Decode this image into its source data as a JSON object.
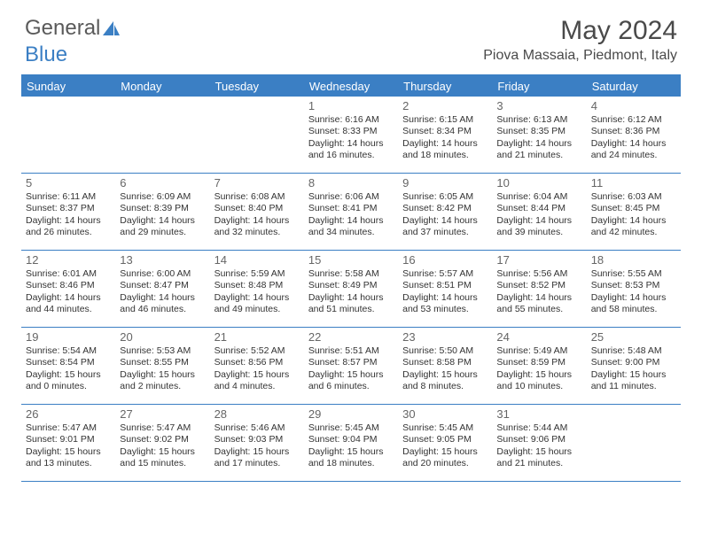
{
  "logo": {
    "text1": "General",
    "text2": "Blue"
  },
  "title": "May 2024",
  "location": "Piova Massaia, Piedmont, Italy",
  "colors": {
    "accent": "#3b7fc4",
    "text": "#333333",
    "muted": "#666666",
    "bg": "#ffffff"
  },
  "dayNames": [
    "Sunday",
    "Monday",
    "Tuesday",
    "Wednesday",
    "Thursday",
    "Friday",
    "Saturday"
  ],
  "weeks": [
    [
      null,
      null,
      null,
      {
        "n": "1",
        "sr": "6:16 AM",
        "ss": "8:33 PM",
        "dh": "14",
        "dm": "16"
      },
      {
        "n": "2",
        "sr": "6:15 AM",
        "ss": "8:34 PM",
        "dh": "14",
        "dm": "18"
      },
      {
        "n": "3",
        "sr": "6:13 AM",
        "ss": "8:35 PM",
        "dh": "14",
        "dm": "21"
      },
      {
        "n": "4",
        "sr": "6:12 AM",
        "ss": "8:36 PM",
        "dh": "14",
        "dm": "24"
      }
    ],
    [
      {
        "n": "5",
        "sr": "6:11 AM",
        "ss": "8:37 PM",
        "dh": "14",
        "dm": "26"
      },
      {
        "n": "6",
        "sr": "6:09 AM",
        "ss": "8:39 PM",
        "dh": "14",
        "dm": "29"
      },
      {
        "n": "7",
        "sr": "6:08 AM",
        "ss": "8:40 PM",
        "dh": "14",
        "dm": "32"
      },
      {
        "n": "8",
        "sr": "6:06 AM",
        "ss": "8:41 PM",
        "dh": "14",
        "dm": "34"
      },
      {
        "n": "9",
        "sr": "6:05 AM",
        "ss": "8:42 PM",
        "dh": "14",
        "dm": "37"
      },
      {
        "n": "10",
        "sr": "6:04 AM",
        "ss": "8:44 PM",
        "dh": "14",
        "dm": "39"
      },
      {
        "n": "11",
        "sr": "6:03 AM",
        "ss": "8:45 PM",
        "dh": "14",
        "dm": "42"
      }
    ],
    [
      {
        "n": "12",
        "sr": "6:01 AM",
        "ss": "8:46 PM",
        "dh": "14",
        "dm": "44"
      },
      {
        "n": "13",
        "sr": "6:00 AM",
        "ss": "8:47 PM",
        "dh": "14",
        "dm": "46"
      },
      {
        "n": "14",
        "sr": "5:59 AM",
        "ss": "8:48 PM",
        "dh": "14",
        "dm": "49"
      },
      {
        "n": "15",
        "sr": "5:58 AM",
        "ss": "8:49 PM",
        "dh": "14",
        "dm": "51"
      },
      {
        "n": "16",
        "sr": "5:57 AM",
        "ss": "8:51 PM",
        "dh": "14",
        "dm": "53"
      },
      {
        "n": "17",
        "sr": "5:56 AM",
        "ss": "8:52 PM",
        "dh": "14",
        "dm": "55"
      },
      {
        "n": "18",
        "sr": "5:55 AM",
        "ss": "8:53 PM",
        "dh": "14",
        "dm": "58"
      }
    ],
    [
      {
        "n": "19",
        "sr": "5:54 AM",
        "ss": "8:54 PM",
        "dh": "15",
        "dm": "0"
      },
      {
        "n": "20",
        "sr": "5:53 AM",
        "ss": "8:55 PM",
        "dh": "15",
        "dm": "2"
      },
      {
        "n": "21",
        "sr": "5:52 AM",
        "ss": "8:56 PM",
        "dh": "15",
        "dm": "4"
      },
      {
        "n": "22",
        "sr": "5:51 AM",
        "ss": "8:57 PM",
        "dh": "15",
        "dm": "6"
      },
      {
        "n": "23",
        "sr": "5:50 AM",
        "ss": "8:58 PM",
        "dh": "15",
        "dm": "8"
      },
      {
        "n": "24",
        "sr": "5:49 AM",
        "ss": "8:59 PM",
        "dh": "15",
        "dm": "10"
      },
      {
        "n": "25",
        "sr": "5:48 AM",
        "ss": "9:00 PM",
        "dh": "15",
        "dm": "11"
      }
    ],
    [
      {
        "n": "26",
        "sr": "5:47 AM",
        "ss": "9:01 PM",
        "dh": "15",
        "dm": "13"
      },
      {
        "n": "27",
        "sr": "5:47 AM",
        "ss": "9:02 PM",
        "dh": "15",
        "dm": "15"
      },
      {
        "n": "28",
        "sr": "5:46 AM",
        "ss": "9:03 PM",
        "dh": "15",
        "dm": "17"
      },
      {
        "n": "29",
        "sr": "5:45 AM",
        "ss": "9:04 PM",
        "dh": "15",
        "dm": "18"
      },
      {
        "n": "30",
        "sr": "5:45 AM",
        "ss": "9:05 PM",
        "dh": "15",
        "dm": "20"
      },
      {
        "n": "31",
        "sr": "5:44 AM",
        "ss": "9:06 PM",
        "dh": "15",
        "dm": "21"
      },
      null
    ]
  ],
  "labels": {
    "sunrise": "Sunrise:",
    "sunset": "Sunset:",
    "daylight": "Daylight:",
    "hours": "hours",
    "and": "and",
    "minutes": "minutes."
  }
}
